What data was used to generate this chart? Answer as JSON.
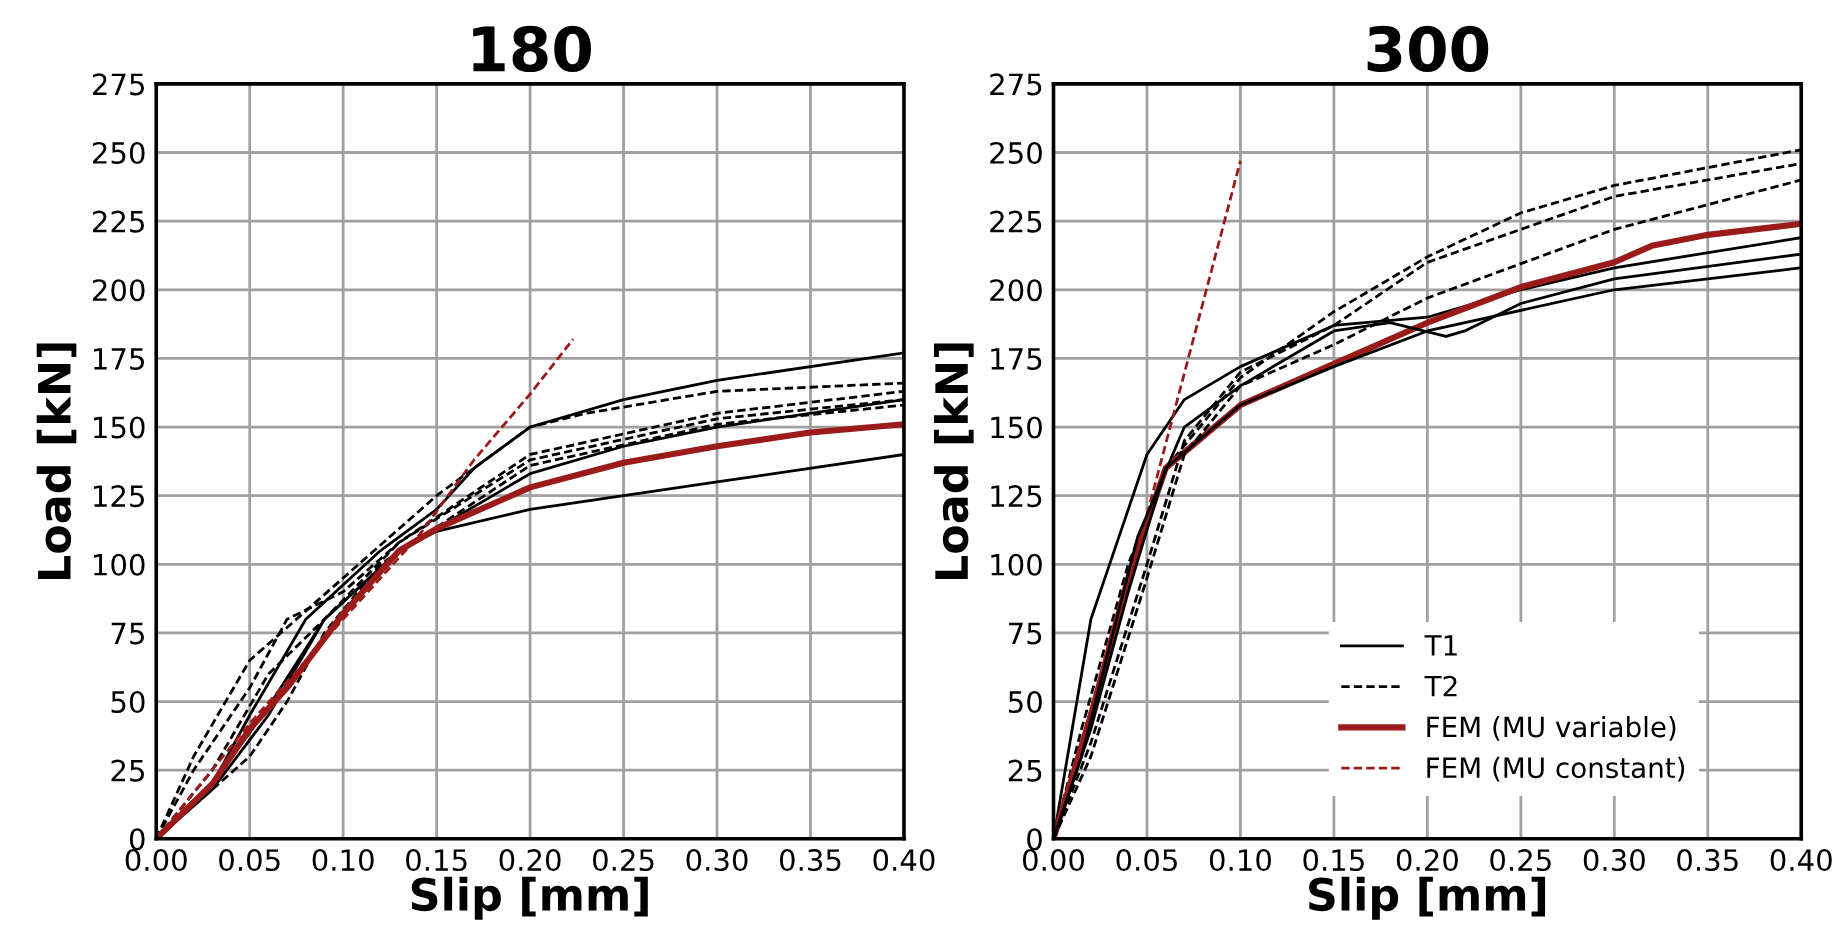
{
  "chart_data": [
    {
      "type": "line",
      "title": "180",
      "xlabel": "Slip [mm]",
      "ylabel": "Load [kN]",
      "xlim": [
        0,
        0.4
      ],
      "ylim": [
        0,
        275
      ],
      "xticks": [
        {
          "value": 0,
          "label": "0.00"
        },
        {
          "value": 0.05,
          "label": "0.05"
        },
        {
          "value": 0.1,
          "label": "0.10"
        },
        {
          "value": 0.15,
          "label": "0.15"
        },
        {
          "value": 0.2,
          "label": "0.20"
        },
        {
          "value": 0.25,
          "label": "0.25"
        },
        {
          "value": 0.3,
          "label": "0.30"
        },
        {
          "value": 0.35,
          "label": "0.35"
        },
        {
          "value": 0.4,
          "label": "0.40"
        }
      ],
      "yticks": [
        0,
        25,
        50,
        75,
        100,
        125,
        150,
        175,
        200,
        225,
        250,
        275
      ],
      "grid": true,
      "legend": false,
      "marker": "none",
      "series": [
        {
          "color": "#000000",
          "line_style": "solid",
          "x": [
            0,
            0.03,
            0.05,
            0.08,
            0.12,
            0.15,
            0.17,
            0.2,
            0.25,
            0.3,
            0.4
          ],
          "values": [
            0,
            20,
            45,
            80,
            105,
            120,
            135,
            150,
            160,
            167,
            177
          ]
        },
        {
          "color": "#000000",
          "line_style": "solid",
          "x": [
            0,
            0.03,
            0.06,
            0.09,
            0.13,
            0.2,
            0.25,
            0.3,
            0.4
          ],
          "values": [
            0,
            18,
            45,
            80,
            105,
            133,
            143,
            150,
            160
          ]
        },
        {
          "color": "#000000",
          "line_style": "solid",
          "x": [
            0,
            0.03,
            0.06,
            0.09,
            0.13,
            0.15,
            0.2,
            0.3,
            0.4
          ],
          "values": [
            0,
            20,
            48,
            80,
            105,
            112,
            120,
            130,
            140
          ]
        },
        {
          "color": "#000000",
          "line_style": "dashed",
          "x": [
            0,
            0.02,
            0.05,
            0.1,
            0.15,
            0.2,
            0.23,
            0.3,
            0.4
          ],
          "values": [
            0,
            30,
            65,
            95,
            125,
            150,
            155,
            163,
            166
          ]
        },
        {
          "color": "#000000",
          "line_style": "dashed",
          "x": [
            0,
            0.02,
            0.05,
            0.07,
            0.1,
            0.13,
            0.2,
            0.3,
            0.4
          ],
          "values": [
            0,
            25,
            55,
            80,
            90,
            108,
            140,
            155,
            163
          ]
        },
        {
          "color": "#000000",
          "line_style": "dashed",
          "x": [
            0,
            0.03,
            0.06,
            0.09,
            0.13,
            0.2,
            0.3,
            0.4
          ],
          "values": [
            0,
            25,
            60,
            80,
            108,
            138,
            153,
            160
          ]
        },
        {
          "color": "#000000",
          "line_style": "dashed",
          "x": [
            0,
            0.05,
            0.07,
            0.09,
            0.12,
            0.2,
            0.3,
            0.4
          ],
          "values": [
            0,
            30,
            50,
            75,
            100,
            136,
            151,
            158
          ]
        },
        {
          "color": "#9b1b1b",
          "line_style": "solid",
          "x": [
            0,
            0.03,
            0.05,
            0.07,
            0.1,
            0.13,
            0.15,
            0.2,
            0.25,
            0.3,
            0.35,
            0.4
          ],
          "values": [
            0,
            20,
            40,
            55,
            82,
            105,
            113,
            128,
            137,
            143,
            148,
            151
          ]
        },
        {
          "color": "#9b1b1b",
          "line_style": "dashed",
          "x": [
            0,
            0.05,
            0.1,
            0.14,
            0.17,
            0.2,
            0.223
          ],
          "values": [
            0,
            42,
            80,
            110,
            138,
            162,
            182
          ]
        }
      ]
    },
    {
      "type": "line",
      "title": "300",
      "xlabel": "Slip [mm]",
      "ylabel": "Load [kN]",
      "xlim": [
        0,
        0.4
      ],
      "ylim": [
        0,
        275
      ],
      "xticks": [
        {
          "value": 0,
          "label": "0.00"
        },
        {
          "value": 0.05,
          "label": "0.05"
        },
        {
          "value": 0.1,
          "label": "0.10"
        },
        {
          "value": 0.15,
          "label": "0.15"
        },
        {
          "value": 0.2,
          "label": "0.20"
        },
        {
          "value": 0.25,
          "label": "0.25"
        },
        {
          "value": 0.3,
          "label": "0.30"
        },
        {
          "value": 0.35,
          "label": "0.35"
        },
        {
          "value": 0.4,
          "label": "0.40"
        }
      ],
      "yticks": [
        0,
        25,
        50,
        75,
        100,
        125,
        150,
        175,
        200,
        225,
        250,
        275
      ],
      "grid": true,
      "legend": "bottom right",
      "marker": "none",
      "series": [
        {
          "name": "T1",
          "color": "#000000",
          "line_style": "solid",
          "x": [
            0,
            0.01,
            0.02,
            0.035,
            0.05,
            0.07,
            0.1,
            0.15,
            0.2,
            0.25,
            0.3,
            0.4
          ],
          "values": [
            0,
            40,
            80,
            110,
            140,
            160,
            172,
            187,
            190,
            200,
            208,
            219
          ]
        },
        {
          "name": "T2",
          "color": "#000000",
          "line_style": "dashed",
          "x": [
            0,
            0.015,
            0.04,
            0.06,
            0.1,
            0.15,
            0.2,
            0.25,
            0.3,
            0.4
          ],
          "values": [
            0,
            40,
            100,
            135,
            168,
            192,
            212,
            228,
            238,
            251
          ]
        },
        {
          "name": "FEM (MU variable)",
          "color": "#9b1b1b",
          "line_style": "solid",
          "x": [
            0,
            0.02,
            0.04,
            0.06,
            0.1,
            0.15,
            0.2,
            0.25,
            0.3,
            0.32,
            0.35,
            0.4
          ],
          "values": [
            0,
            45,
            95,
            135,
            158,
            173,
            188,
            201,
            210,
            216,
            220,
            224
          ]
        },
        {
          "name": "FEM (MU constant)",
          "color": "#9b1b1b",
          "line_style": "dashed",
          "x": [
            0,
            0.05,
            0.1
          ],
          "values": [
            0,
            118,
            247
          ]
        },
        {
          "color": "#000000",
          "line_style": "solid",
          "x": [
            0,
            0.015,
            0.03,
            0.045,
            0.07,
            0.1,
            0.15,
            0.18,
            0.21,
            0.22,
            0.25,
            0.3,
            0.4
          ],
          "values": [
            0,
            30,
            70,
            110,
            150,
            165,
            185,
            188,
            183,
            185,
            195,
            204,
            213
          ]
        },
        {
          "color": "#000000",
          "line_style": "solid",
          "x": [
            0,
            0.02,
            0.04,
            0.06,
            0.1,
            0.15,
            0.2,
            0.3,
            0.4
          ],
          "values": [
            0,
            40,
            90,
            135,
            158,
            172,
            185,
            200,
            208
          ]
        },
        {
          "color": "#000000",
          "line_style": "dashed",
          "x": [
            0,
            0.02,
            0.05,
            0.07,
            0.1,
            0.15,
            0.2,
            0.3,
            0.4
          ],
          "values": [
            0,
            35,
            100,
            145,
            170,
            187,
            210,
            234,
            246
          ]
        },
        {
          "color": "#000000",
          "line_style": "dashed",
          "x": [
            0,
            0.02,
            0.05,
            0.07,
            0.1,
            0.15,
            0.2,
            0.3,
            0.4
          ],
          "values": [
            0,
            30,
            95,
            140,
            165,
            180,
            197,
            222,
            240
          ]
        }
      ]
    }
  ]
}
